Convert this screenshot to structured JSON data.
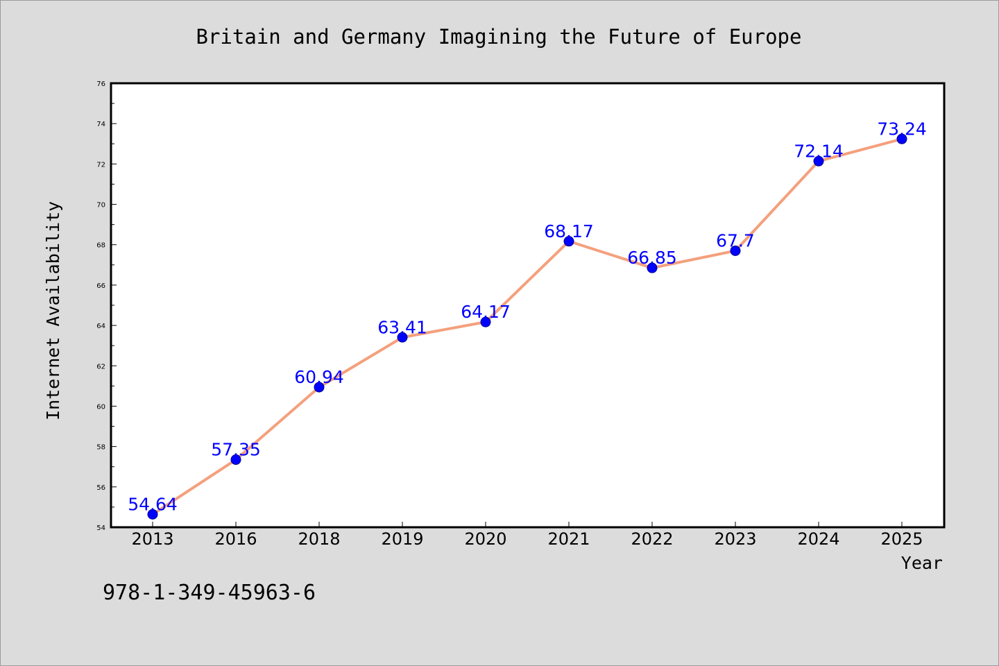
{
  "chart_data": {
    "type": "line",
    "title": "Britain and Germany Imagining the Future of Europe",
    "xlabel": "Year",
    "ylabel": "Internet Availability",
    "categories": [
      "2013",
      "2016",
      "2018",
      "2019",
      "2020",
      "2021",
      "2022",
      "2023",
      "2024",
      "2025"
    ],
    "series": [
      {
        "values": [
          54.64,
          57.35,
          60.94,
          63.41,
          64.17,
          68.17,
          66.85,
          67.7,
          72.14,
          73.24
        ],
        "data_labels": [
          "54.64",
          "57.35",
          "60.94",
          "63.41",
          "64.17",
          "68.17",
          "66.85",
          "67.7",
          "72.14",
          "73.24"
        ],
        "line_color": "#f4a07d",
        "marker_color": "#0000ff"
      }
    ],
    "ylim": [
      54,
      76
    ],
    "yticks": [
      "54",
      "56",
      "58",
      "60",
      "62",
      "64",
      "66",
      "68",
      "70",
      "72",
      "74",
      "76"
    ],
    "grid": false,
    "footnote": "978-1-349-45963-6"
  },
  "colors": {
    "background": "#dcdcdc",
    "plot_background": "#ffffff",
    "label_color": "#0000ff"
  }
}
